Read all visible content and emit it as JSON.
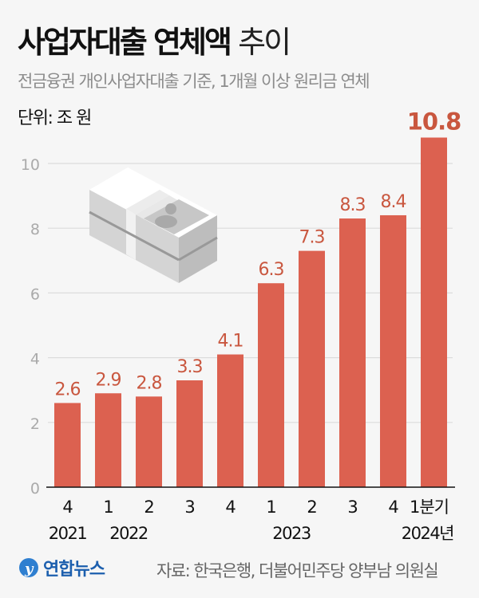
{
  "header": {
    "title_bold": "사업자대출 연체액",
    "title_light": "추이",
    "subtitle": "전금융권 개인사업자대출 기준, 1개월 이상 원리금 연체",
    "unit": "단위: 조 원"
  },
  "chart_data": {
    "type": "bar",
    "categories": [
      "4",
      "1",
      "2",
      "3",
      "4",
      "1",
      "2",
      "3",
      "4",
      "1분기"
    ],
    "year_labels": [
      "2021",
      "2022",
      "2023",
      "2024년"
    ],
    "values": [
      2.6,
      2.9,
      2.8,
      3.3,
      4.1,
      6.3,
      7.3,
      8.3,
      8.4,
      10.8
    ],
    "value_labels": [
      "2.6",
      "2.9",
      "2.8",
      "3.3",
      "4.1",
      "6.3",
      "7.3",
      "8.3",
      "8.4",
      "10.8"
    ],
    "y_ticks": [
      "0",
      "2",
      "4",
      "6",
      "8",
      "10"
    ],
    "ylim": [
      0,
      10.8
    ],
    "grid": true,
    "colors": {
      "bar": "#dc6150",
      "label": "#c9573f",
      "grid": "#dcdcdc"
    }
  },
  "footer": {
    "logo": "연합뉴스",
    "source": "자료: 한국은행, 더불어민주당 양부남 의원실"
  }
}
